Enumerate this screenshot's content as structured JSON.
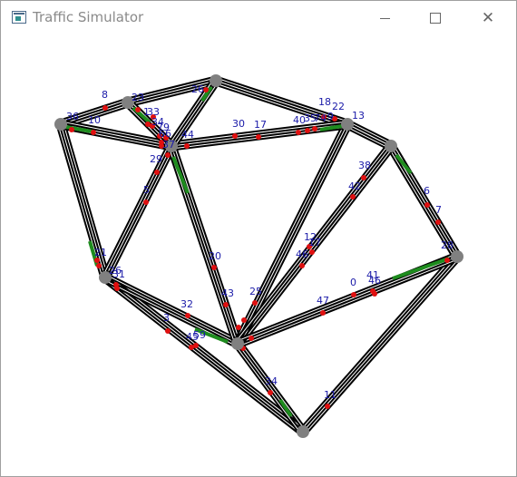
{
  "window": {
    "title": "Traffic Simulator",
    "icon": "app-window-icon",
    "controls": {
      "minimize_icon": "minimize-icon",
      "maximize_icon": "maximize-icon",
      "close_icon": "close-icon",
      "close_glyph": "✕"
    }
  },
  "colors": {
    "road_outer": "#000000",
    "road_inner": "#ffffff",
    "congested": "#1e8c1e",
    "node": "#808080",
    "vehicle": "#e01010",
    "label": "#1a1aa8"
  },
  "labels": [
    "8",
    "23",
    "1",
    "33",
    "34",
    "79",
    "66",
    "26",
    "36",
    "10",
    "44",
    "37",
    "29",
    "30",
    "17",
    "18",
    "22",
    "40",
    "35",
    "74",
    "9",
    "13",
    "38",
    "42",
    "6",
    "7",
    "5",
    "21",
    "20",
    "26",
    "31",
    "12",
    "17",
    "46",
    "28",
    "25",
    "43",
    "32",
    "47",
    "0",
    "41",
    "46",
    "3",
    "45",
    "59",
    "34",
    "11"
  ]
}
